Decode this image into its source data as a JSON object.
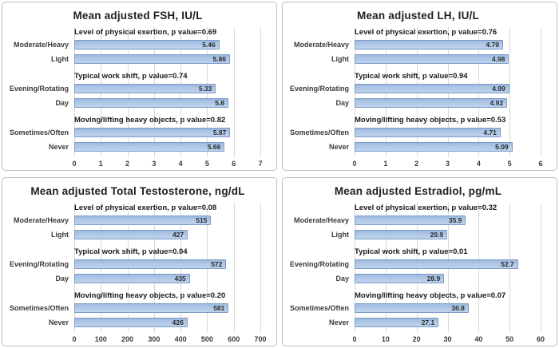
{
  "colors": {
    "bar_fill_top": "#9db9dd",
    "bar_fill_mid": "#aec7e7",
    "bar_fill_bottom": "#bed2ec",
    "bar_border": "#7b9cc9",
    "gridline": "#d9d9d9",
    "panel_border": "#bdbdbd",
    "title_text": "#1f1f1f",
    "label_text": "#3b3b3b"
  },
  "chart_data": [
    {
      "type": "bar",
      "orientation": "horizontal",
      "title": "Mean adjusted FSH, IU/L",
      "categories": [
        "Moderate/Heavy",
        "Light",
        "Evening/Rotating",
        "Day",
        "Sometimes/Often",
        "Never"
      ],
      "values": [
        5.46,
        5.86,
        5.33,
        5.8,
        5.87,
        5.66
      ],
      "group_annotations": [
        "Level of physical exertion, p value=0.69",
        "Typical work shift, p value=0.74",
        "Moving/lifting heavy objects, p value=0.82"
      ],
      "xlim": [
        0,
        7
      ],
      "xticks": [
        0,
        1,
        2,
        3,
        4,
        5,
        6,
        7
      ],
      "grid": true,
      "legend": false
    },
    {
      "type": "bar",
      "orientation": "horizontal",
      "title": "Mean adjusted LH, IU/L",
      "categories": [
        "Moderate/Heavy",
        "Light",
        "Evening/Rotating",
        "Day",
        "Sometimes/Often",
        "Never"
      ],
      "values": [
        4.79,
        4.98,
        4.99,
        4.92,
        4.71,
        5.09
      ],
      "group_annotations": [
        "Level of physical exertion, p value=0.76",
        "Typical work shift, p value=0.94",
        "Moving/lifting heavy objects, p value=0.53"
      ],
      "xlim": [
        0,
        6
      ],
      "xticks": [
        0,
        1,
        2,
        3,
        4,
        5,
        6
      ],
      "grid": true,
      "legend": false
    },
    {
      "type": "bar",
      "orientation": "horizontal",
      "title": "Mean adjusted Total Testosterone, ng/dL",
      "categories": [
        "Moderate/Heavy",
        "Light",
        "Evening/Rotating",
        "Day",
        "Sometimes/Often",
        "Never"
      ],
      "values": [
        515,
        427,
        572,
        435,
        581,
        426
      ],
      "group_annotations": [
        "Level of physical exertion, p value=0.08",
        "Typical work shift, p value=0.04",
        "Moving/lifting heavy objects, p value=0.20"
      ],
      "xlim": [
        0,
        700
      ],
      "xticks": [
        0,
        100,
        200,
        300,
        400,
        500,
        600,
        700
      ],
      "grid": true,
      "legend": false
    },
    {
      "type": "bar",
      "orientation": "horizontal",
      "title": "Mean adjusted Estradiol, pg/mL",
      "categories": [
        "Moderate/Heavy",
        "Light",
        "Evening/Rotating",
        "Day",
        "Sometimes/Often",
        "Never"
      ],
      "values": [
        35.9,
        29.9,
        52.7,
        28.9,
        36.8,
        27.1
      ],
      "group_annotations": [
        "Level of physical exertion, p value=0.32",
        "Typical work shift, p value=0.01",
        "Moving/lifting heavy objects, p value=0.07"
      ],
      "xlim": [
        0,
        60
      ],
      "xticks": [
        0,
        10,
        20,
        30,
        40,
        50,
        60
      ],
      "grid": true,
      "legend": false
    }
  ]
}
